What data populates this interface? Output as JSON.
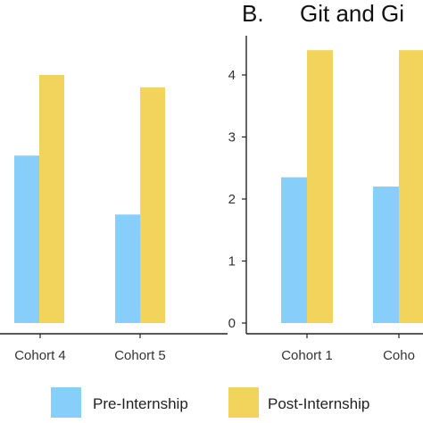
{
  "chart_data": [
    {
      "type": "bar",
      "panel_label": "",
      "title": "",
      "categories": [
        "Cohort 4",
        "Cohort 5"
      ],
      "series": [
        {
          "name": "Pre-Internship",
          "values": [
            2.7,
            1.75
          ]
        },
        {
          "name": "Post-Internship",
          "values": [
            4.0,
            3.8
          ]
        }
      ],
      "ylim": [
        0,
        4.4
      ],
      "grid": false
    },
    {
      "type": "bar",
      "panel_label": "B.",
      "title": "Git and Gi",
      "categories": [
        "Cohort 1",
        "Coho"
      ],
      "series": [
        {
          "name": "Pre-Internship",
          "values": [
            2.35,
            2.2
          ]
        },
        {
          "name": "Post-Internship",
          "values": [
            4.4,
            4.4
          ]
        }
      ],
      "yticks": [
        0,
        1,
        2,
        3,
        4
      ],
      "ylim": [
        0,
        4.4
      ],
      "grid": false
    }
  ],
  "legend": {
    "position": "bottom",
    "items": [
      {
        "label": "Pre-Internship",
        "color": "#87CEFA"
      },
      {
        "label": "Post-Internship",
        "color": "#F2D35B"
      }
    ]
  }
}
